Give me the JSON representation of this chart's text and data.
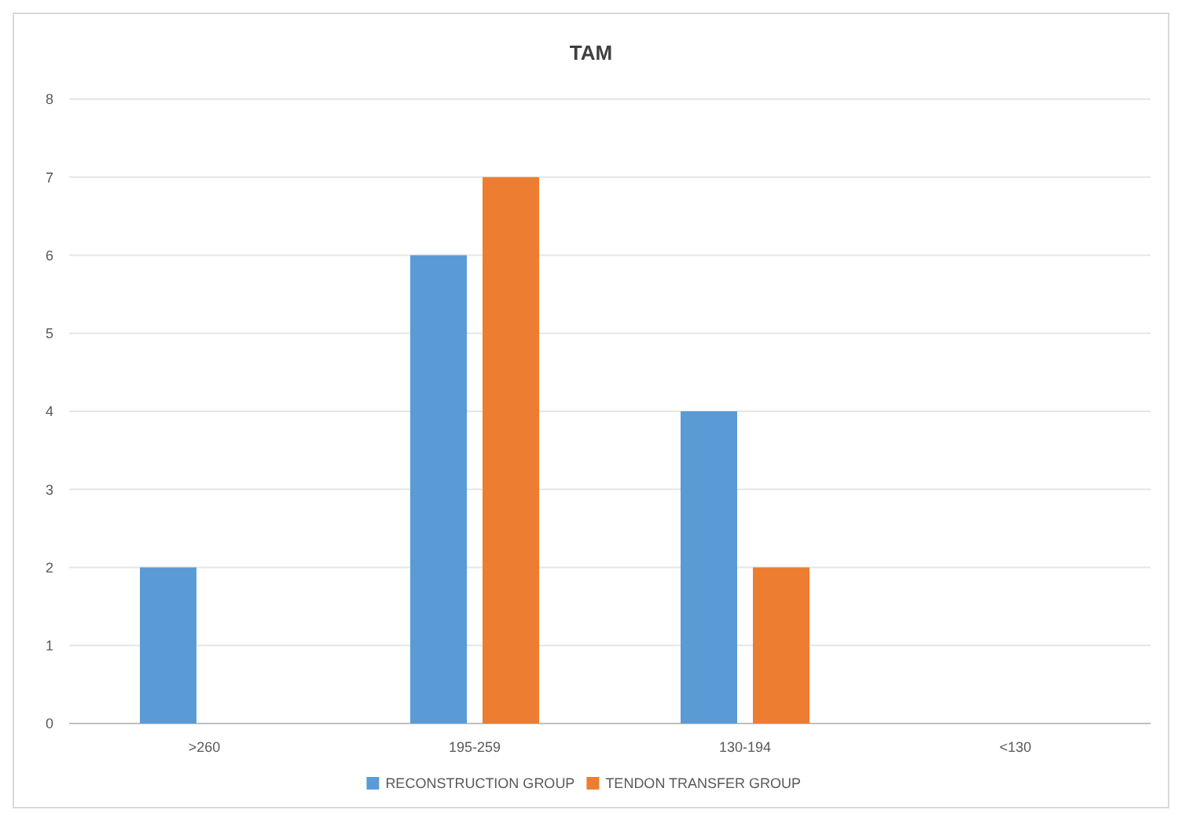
{
  "chart_data": {
    "type": "bar",
    "title": "TAM",
    "categories": [
      ">260",
      "195-259",
      "130-194",
      "<130"
    ],
    "series": [
      {
        "name": "RECONSTRUCTION GROUP",
        "color": "#5b9bd5",
        "values": [
          2,
          6,
          4,
          0
        ]
      },
      {
        "name": "TENDON TRANSFER GROUP",
        "color": "#ed7d31",
        "values": [
          0,
          7,
          2,
          0
        ]
      }
    ],
    "ylim": [
      0,
      8
    ],
    "yticks": [
      0,
      1,
      2,
      3,
      4,
      5,
      6,
      7,
      8
    ],
    "grid": "y",
    "legend": "bottom"
  }
}
